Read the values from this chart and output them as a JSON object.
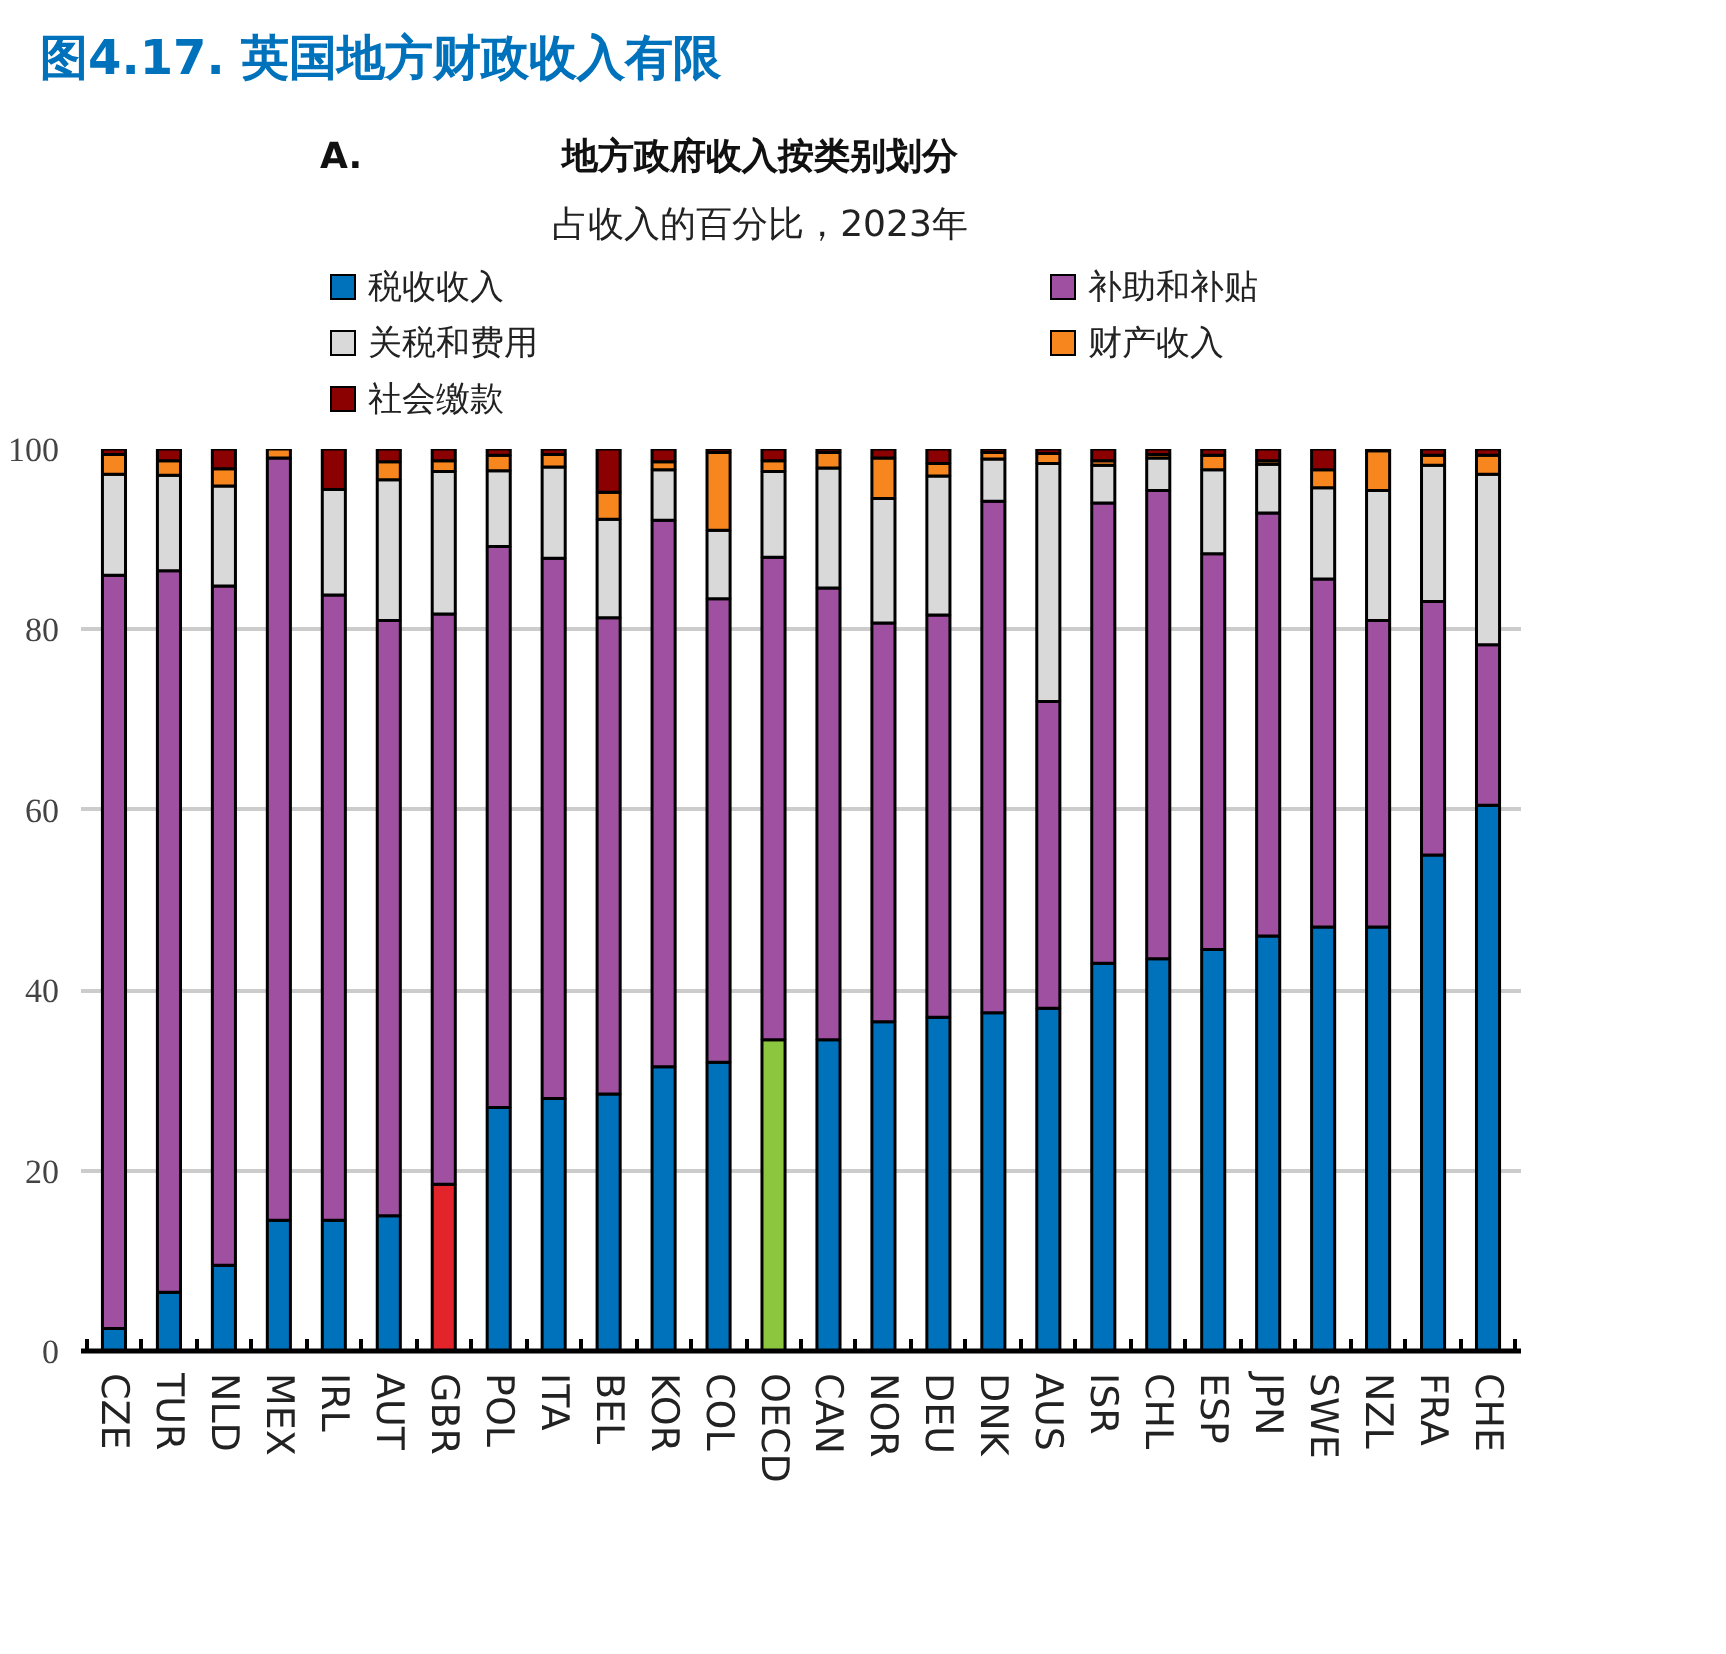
{
  "chart_data": {
    "type": "bar",
    "stacked": true,
    "title": "图4.17. 英国地方财政收入有限",
    "subtitle": "地方政府收入按类别划分",
    "annotations": [
      "A.",
      "占收入的百分比，2023年"
    ],
    "categories": [
      "CZE",
      "TUR",
      "NLD",
      "MEX",
      "IRL",
      "AUT",
      "GBR",
      "POL",
      "ITA",
      "BEL",
      "KOR",
      "COL",
      "OECD",
      "CAN",
      "NOR",
      "DEU",
      "DNK",
      "AUS",
      "ISR",
      "CHL",
      "ESP",
      "JPN",
      "SWE",
      "NZL",
      "FRA",
      "CHE"
    ],
    "series": [
      {
        "name": "税收收入",
        "color": "#0072bc",
        "colors": [
          "#0072bc",
          "#0072bc",
          "#0072bc",
          "#0072bc",
          "#0072bc",
          "#0072bc",
          "#e3242b",
          "#0072bc",
          "#0072bc",
          "#0072bc",
          "#0072bc",
          "#0072bc",
          "#8cc63f",
          "#0072bc",
          "#0072bc",
          "#0072bc",
          "#0072bc",
          "#0072bc",
          "#0072bc",
          "#0072bc",
          "#0072bc",
          "#0072bc",
          "#0072bc",
          "#0072bc",
          "#0072bc",
          "#0072bc"
        ],
        "values": [
          2.5,
          6.5,
          9.5,
          14.5,
          14.5,
          15,
          18.5,
          27,
          28,
          28.5,
          31.5,
          32,
          34.5,
          34.5,
          36.5,
          37,
          37.5,
          38,
          43,
          43.5,
          44.5,
          46,
          47,
          47,
          55,
          60.5
        ]
      },
      {
        "name": "补助和补贴",
        "color": "#a050a0",
        "values": [
          83.5,
          80,
          75.3,
          84.5,
          69.3,
          66,
          63.2,
          62.2,
          59.9,
          52.8,
          60.6,
          51.4,
          53.5,
          50.1,
          44.2,
          44.6,
          56.7,
          34,
          51,
          51.9,
          43.9,
          46.9,
          38.6,
          34,
          28.1,
          17.8
        ]
      },
      {
        "name": "关税和费用",
        "color": "#d9d9d9",
        "values": [
          11.2,
          10.6,
          11.1,
          0,
          11.7,
          15.6,
          15.8,
          8.4,
          10.1,
          10.9,
          5.6,
          7.6,
          9.5,
          13.3,
          13.8,
          15.4,
          4.7,
          26.4,
          4.2,
          3.6,
          9.3,
          5.4,
          10.1,
          14.4,
          15.1,
          18.9
        ]
      },
      {
        "name": "财产收入",
        "color": "#f7861f",
        "values": [
          2.2,
          1.6,
          1.9,
          1,
          0,
          2,
          1.2,
          1.7,
          1.4,
          3,
          0.9,
          8.6,
          1.2,
          1.7,
          4.5,
          1.4,
          0.7,
          1.1,
          0.5,
          0.4,
          1.6,
          0.4,
          2,
          4.4,
          1.1,
          2.1
        ]
      },
      {
        "name": "社会缴款",
        "color": "#8b0000",
        "values": [
          0.6,
          1.3,
          2.2,
          0,
          4.5,
          1.4,
          1.3,
          0.7,
          0.6,
          4.8,
          1.4,
          0.4,
          1.3,
          0.4,
          1,
          1.6,
          0.4,
          0.5,
          1.3,
          0.6,
          0.7,
          1.3,
          2.3,
          0.2,
          0.7,
          0.7
        ]
      }
    ],
    "ylim": [
      0,
      100
    ],
    "yticks": [
      0,
      20,
      40,
      60,
      80,
      100
    ],
    "grid": "y",
    "legend": "top"
  }
}
